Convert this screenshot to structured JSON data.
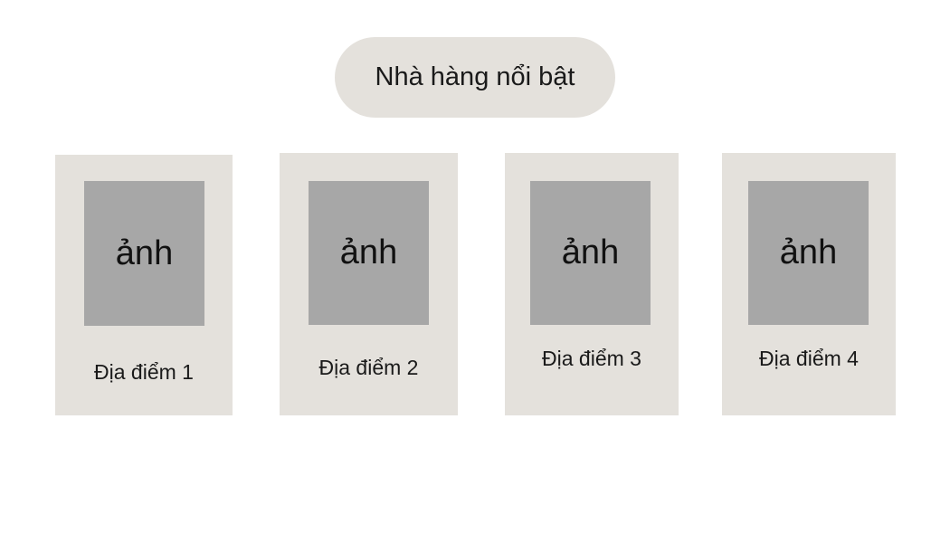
{
  "header": {
    "title": "Nhà hàng nổi bật"
  },
  "cards": [
    {
      "image_placeholder": "ảnh",
      "label": "Địa điểm 1"
    },
    {
      "image_placeholder": "ảnh",
      "label": "Địa điểm 2"
    },
    {
      "image_placeholder": "ảnh",
      "label": "Địa điểm 3"
    },
    {
      "image_placeholder": "ảnh",
      "label": "Địa điểm 4"
    }
  ],
  "colors": {
    "panel_background": "#e4e1dc",
    "image_placeholder": "#a7a7a7",
    "page_background": "#ffffff",
    "text": "#1a1a1a"
  }
}
